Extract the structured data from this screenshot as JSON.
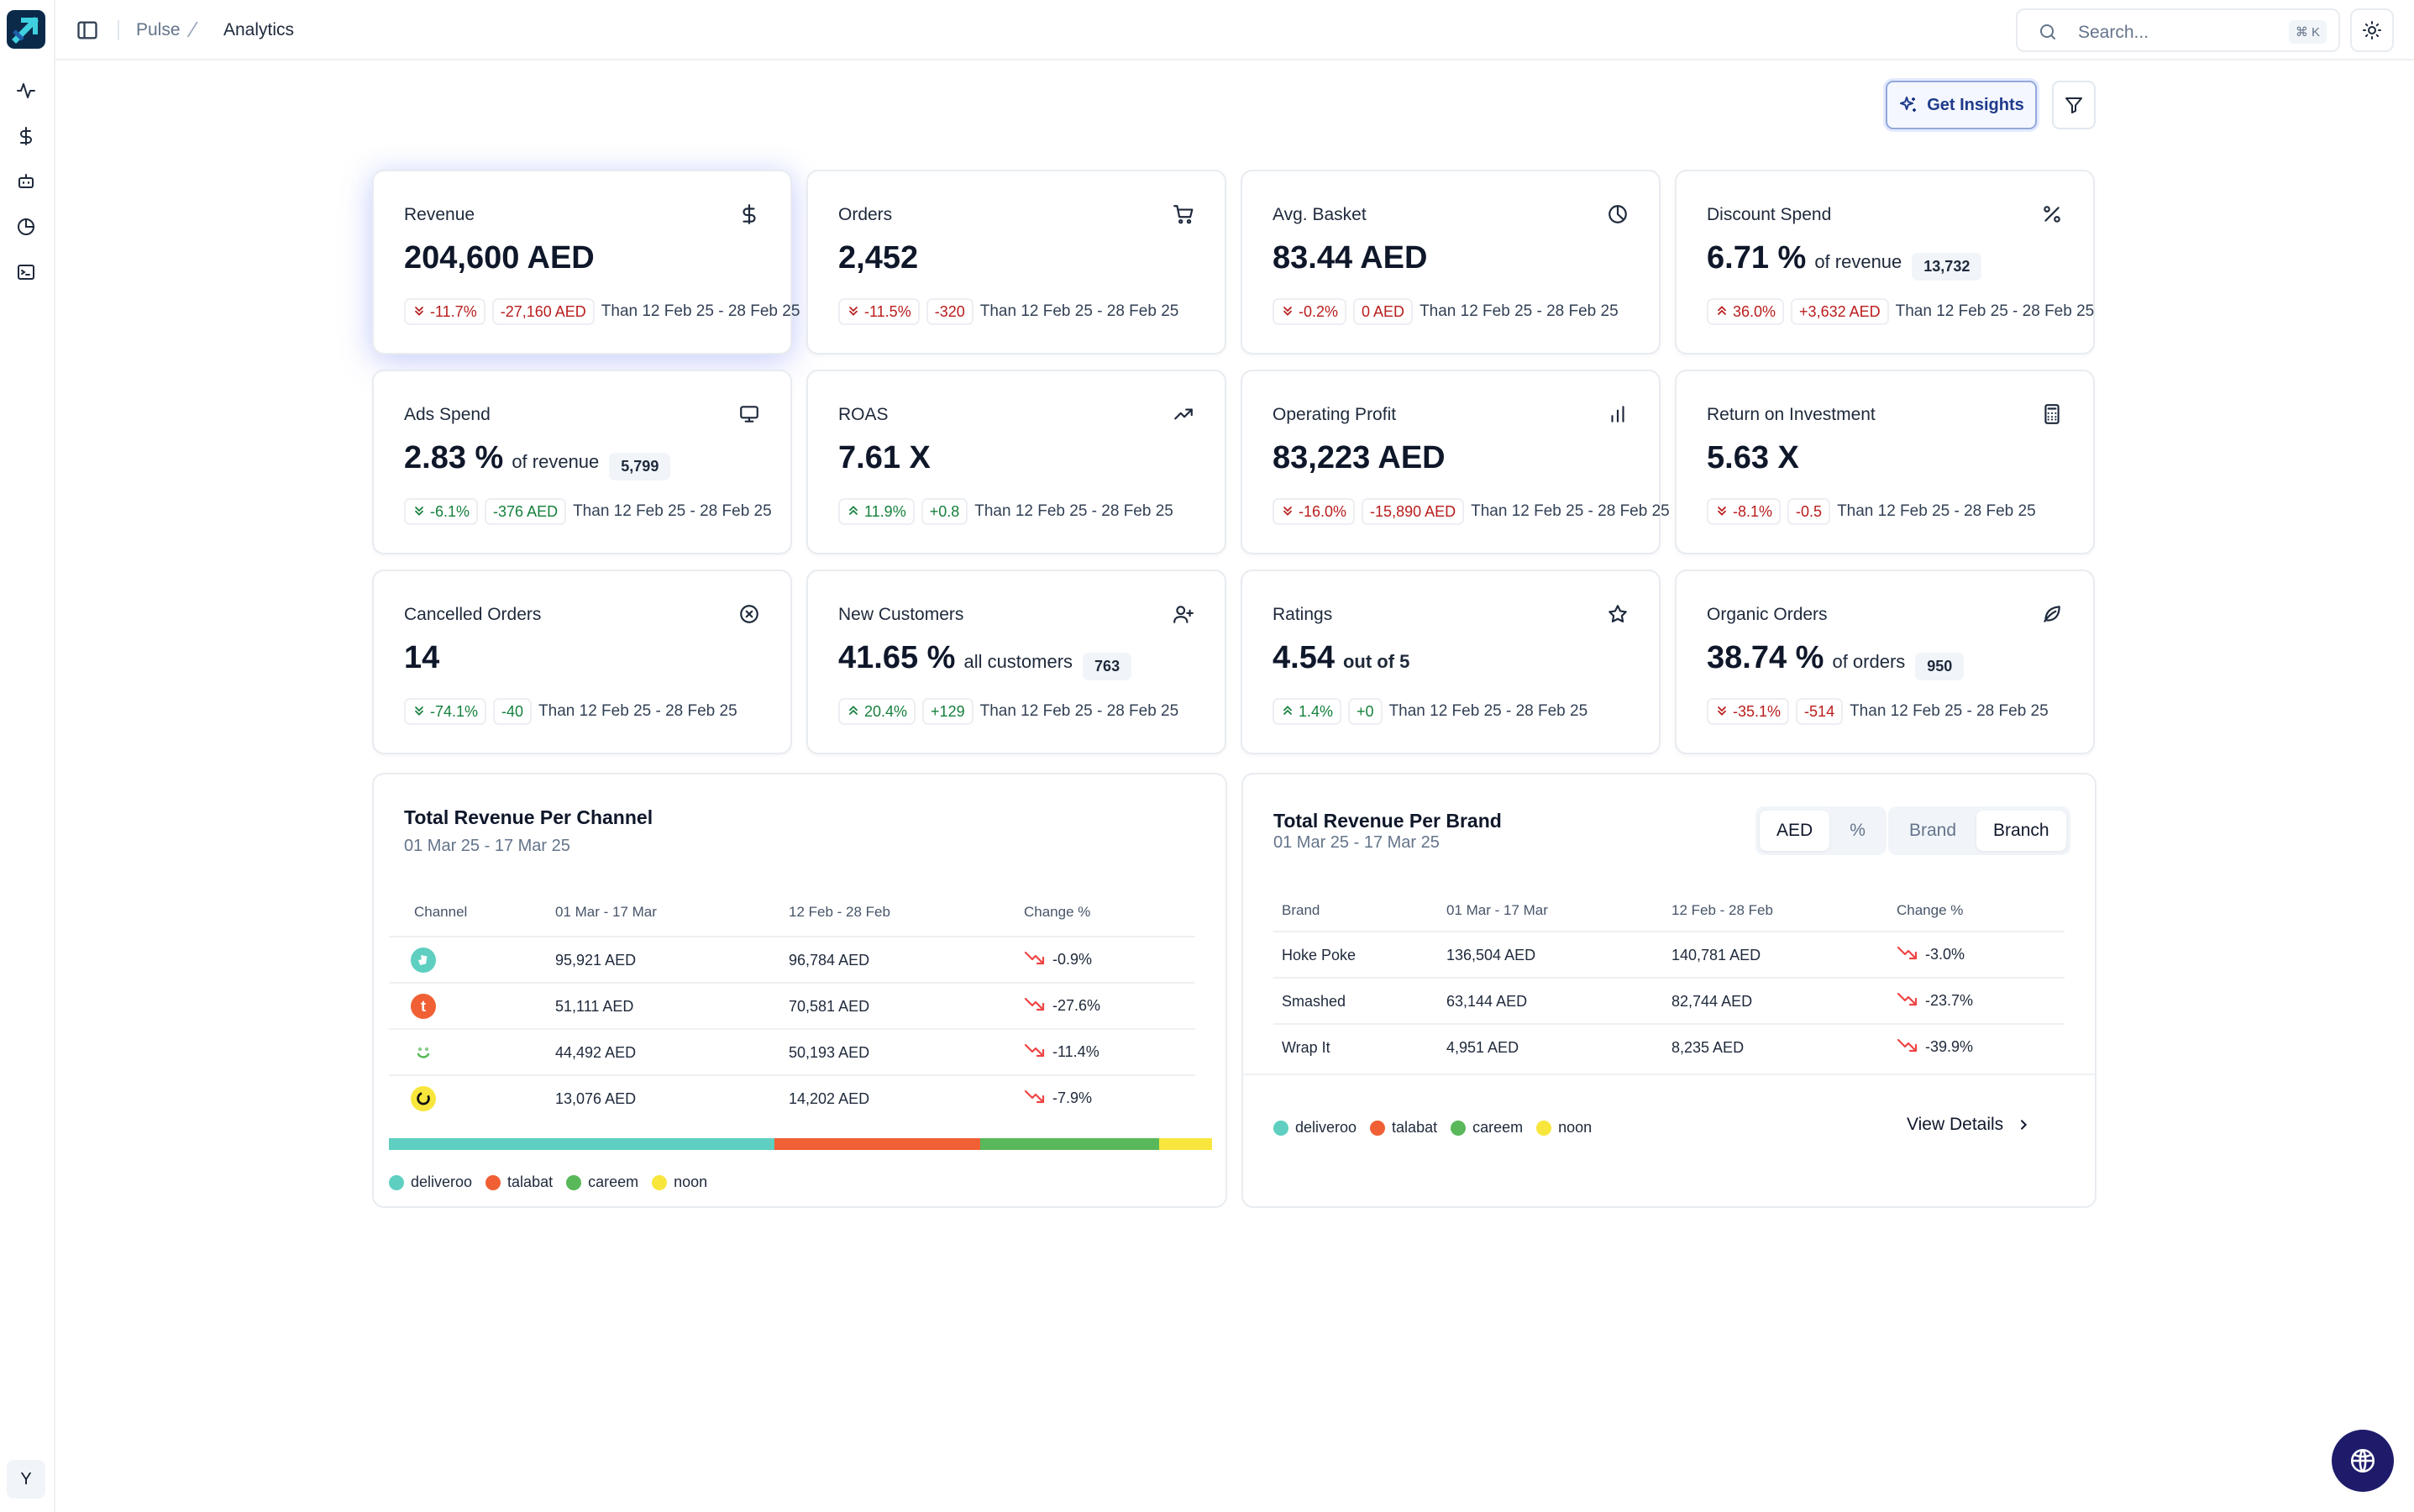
{
  "breadcrumb": {
    "root": "Pulse",
    "current": "Analytics"
  },
  "search": {
    "placeholder": "Search...",
    "shortcut": "⌘ K"
  },
  "actions": {
    "insights_label": "Get Insights"
  },
  "user": {
    "avatar_initial": "Y"
  },
  "kpis": [
    {
      "title": "Revenue",
      "icon": "dollar-icon",
      "value": "204,600 AED",
      "suffix": "",
      "pill": "",
      "pct": "-11.7%",
      "delta": "-27,160 AED",
      "trend": "down",
      "tone": "neg",
      "note": "Than 12 Feb 25 - 28 Feb 25"
    },
    {
      "title": "Orders",
      "icon": "cart-icon",
      "value": "2,452",
      "suffix": "",
      "pill": "",
      "pct": "-11.5%",
      "delta": "-320",
      "trend": "down",
      "tone": "neg",
      "note": "Than 12 Feb 25 - 28 Feb 25"
    },
    {
      "title": "Avg. Basket",
      "icon": "pie-chart-icon",
      "value": "83.44 AED",
      "suffix": "",
      "pill": "",
      "pct": "-0.2%",
      "delta": "0 AED",
      "trend": "down",
      "tone": "neg",
      "note": "Than 12 Feb 25 - 28 Feb 25"
    },
    {
      "title": "Discount Spend",
      "icon": "percent-icon",
      "value": "6.71 %",
      "suffix": "of revenue",
      "pill": "13,732",
      "pct": "36.0%",
      "delta": "+3,632 AED",
      "trend": "up",
      "tone": "neg",
      "note": "Than 12 Feb 25 - 28 Feb 25"
    },
    {
      "title": "Ads Spend",
      "icon": "monitor-icon",
      "value": "2.83 %",
      "suffix": "of revenue",
      "pill": "5,799",
      "pct": "-6.1%",
      "delta": "-376 AED",
      "trend": "down",
      "tone": "pos",
      "note": "Than 12 Feb 25 - 28 Feb 25"
    },
    {
      "title": "ROAS",
      "icon": "trending-up-icon",
      "value": "7.61 X",
      "suffix": "",
      "pill": "",
      "pct": "11.9%",
      "delta": "+0.8",
      "trend": "up",
      "tone": "pos",
      "note": "Than 12 Feb 25 - 28 Feb 25"
    },
    {
      "title": "Operating Profit",
      "icon": "bar-chart-icon",
      "value": "83,223 AED",
      "suffix": "",
      "pill": "",
      "pct": "-16.0%",
      "delta": "-15,890 AED",
      "trend": "down",
      "tone": "neg",
      "note": "Than 12 Feb 25 - 28 Feb 25"
    },
    {
      "title": "Return on Investment",
      "icon": "calculator-icon",
      "value": "5.63 X",
      "suffix": "",
      "pill": "",
      "pct": "-8.1%",
      "delta": "-0.5",
      "trend": "down",
      "tone": "neg",
      "note": "Than 12 Feb 25 - 28 Feb 25"
    },
    {
      "title": "Cancelled Orders",
      "icon": "circle-x-icon",
      "value": "14",
      "suffix": "",
      "pill": "",
      "pct": "-74.1%",
      "delta": "-40",
      "trend": "down",
      "tone": "pos",
      "note": "Than 12 Feb 25 - 28 Feb 25"
    },
    {
      "title": "New Customers",
      "icon": "user-plus-icon",
      "value": "41.65 %",
      "suffix": "all customers",
      "pill": "763",
      "pct": "20.4%",
      "delta": "+129",
      "trend": "up",
      "tone": "pos",
      "note": "Than 12 Feb 25 - 28 Feb 25"
    },
    {
      "title": "Ratings",
      "icon": "star-icon",
      "value": "4.54",
      "suffix": "out of 5",
      "pill": "",
      "pct": "1.4%",
      "delta": "+0",
      "trend": "up",
      "tone": "pos",
      "note": "Than 12 Feb 25 - 28 Feb 25"
    },
    {
      "title": "Organic Orders",
      "icon": "leaf-icon",
      "value": "38.74 %",
      "suffix": "of orders",
      "pill": "950",
      "pct": "-35.1%",
      "delta": "-514",
      "trend": "down",
      "tone": "neg",
      "note": "Than 12 Feb 25 - 28 Feb 25"
    }
  ],
  "channels": {
    "title": "Total Revenue Per Channel",
    "subtitle": "01 Mar 25 - 17 Mar 25",
    "headers": [
      "Channel",
      "01 Mar - 17 Mar",
      "12 Feb - 28 Feb",
      "Change %"
    ],
    "rows": [
      {
        "channel": "deliveroo",
        "current": "95,921 AED",
        "previous": "96,784 AED",
        "change": "-0.9%"
      },
      {
        "channel": "talabat",
        "current": "51,111 AED",
        "previous": "70,581 AED",
        "change": "-27.6%"
      },
      {
        "channel": "careem",
        "current": "44,492 AED",
        "previous": "50,193 AED",
        "change": "-11.4%"
      },
      {
        "channel": "noon",
        "current": "13,076 AED",
        "previous": "14,202 AED",
        "change": "-7.9%"
      }
    ],
    "share_bar": [
      {
        "name": "deliveroo",
        "value": 95921,
        "color": "#5ecfc0"
      },
      {
        "name": "talabat",
        "value": 51111,
        "color": "#f06034"
      },
      {
        "name": "careem",
        "value": 44492,
        "color": "#59b85a"
      },
      {
        "name": "noon",
        "value": 13076,
        "color": "#f8e63c"
      }
    ]
  },
  "brands": {
    "title": "Total Revenue Per Brand",
    "subtitle": "01 Mar 25 - 17 Mar 25",
    "unit_toggle": [
      "AED",
      "%"
    ],
    "unit_selected": "AED",
    "group_toggle": [
      "Brand",
      "Branch"
    ],
    "group_selected": "Branch",
    "headers": [
      "Brand",
      "01 Mar - 17 Mar",
      "12 Feb - 28 Feb",
      "Change %"
    ],
    "rows": [
      {
        "brand": "Hoke Poke",
        "current": "136,504 AED",
        "previous": "140,781 AED",
        "change": "-3.0%"
      },
      {
        "brand": "Smashed",
        "current": "63,144 AED",
        "previous": "82,744 AED",
        "change": "-23.7%"
      },
      {
        "brand": "Wrap It",
        "current": "4,951 AED",
        "previous": "8,235 AED",
        "change": "-39.9%"
      }
    ],
    "view_details": "View Details"
  },
  "legend": [
    {
      "name": "deliveroo",
      "color": "#5ecfc0"
    },
    {
      "name": "talabat",
      "color": "#f06034"
    },
    {
      "name": "careem",
      "color": "#59b85a"
    },
    {
      "name": "noon",
      "color": "#f8e63c"
    }
  ],
  "colors": {
    "negative": "#b91c1c",
    "positive": "#15803d",
    "brand_dark": "#0b2a4a",
    "fab": "#1e1b6a"
  }
}
